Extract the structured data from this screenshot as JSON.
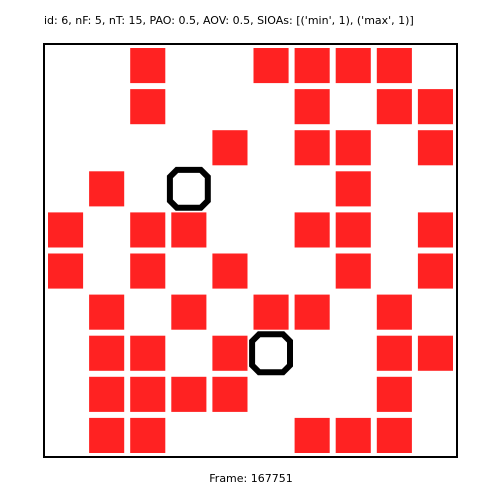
{
  "header": {
    "text": "id: 6, nF: 5, nT: 15, PAO: 0.5, AOV: 0.5, SIOAs: [('min', 1), ('max', 1)]"
  },
  "footer": {
    "label": "Frame: 167751"
  },
  "colors": {
    "cell": "#ff2222",
    "agent": "#000000",
    "background": "#ffffff"
  },
  "grid": {
    "rows": 10,
    "cols": 10,
    "cells": [
      [
        2,
        0
      ],
      [
        5,
        0
      ],
      [
        6,
        0
      ],
      [
        7,
        0
      ],
      [
        8,
        0
      ],
      [
        2,
        1
      ],
      [
        6,
        1
      ],
      [
        8,
        1
      ],
      [
        9,
        1
      ],
      [
        4,
        2
      ],
      [
        6,
        2
      ],
      [
        7,
        2
      ],
      [
        9,
        2
      ],
      [
        1,
        3
      ],
      [
        7,
        3
      ],
      [
        0,
        4
      ],
      [
        2,
        4
      ],
      [
        3,
        4
      ],
      [
        6,
        4
      ],
      [
        7,
        4
      ],
      [
        9,
        4
      ],
      [
        0,
        5
      ],
      [
        2,
        5
      ],
      [
        4,
        5
      ],
      [
        7,
        5
      ],
      [
        9,
        5
      ],
      [
        1,
        6
      ],
      [
        3,
        6
      ],
      [
        5,
        6
      ],
      [
        6,
        6
      ],
      [
        8,
        6
      ],
      [
        1,
        7
      ],
      [
        2,
        7
      ],
      [
        4,
        7
      ],
      [
        8,
        7
      ],
      [
        9,
        7
      ],
      [
        1,
        8
      ],
      [
        2,
        8
      ],
      [
        3,
        8
      ],
      [
        4,
        8
      ],
      [
        8,
        8
      ],
      [
        1,
        9
      ],
      [
        2,
        9
      ],
      [
        6,
        9
      ],
      [
        7,
        9
      ],
      [
        8,
        9
      ]
    ],
    "agents": [
      [
        3,
        3
      ],
      [
        5,
        7
      ]
    ]
  }
}
